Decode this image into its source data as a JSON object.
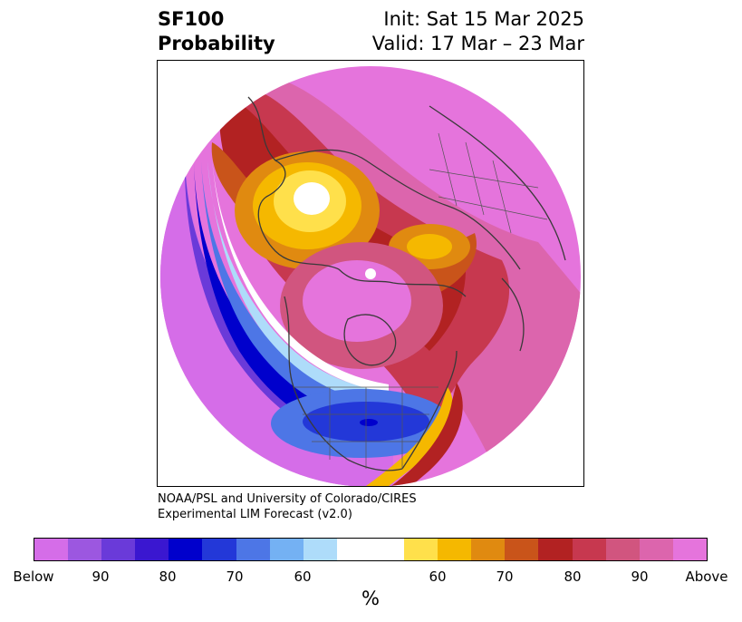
{
  "title": {
    "left_line1": "SF100",
    "left_line2": "Probability",
    "right_line1": "Init: Sat 15 Mar 2025",
    "right_line2": "Valid: 17 Mar – 23 Mar"
  },
  "credit": {
    "line1": "NOAA/PSL and University of Colorado/CIRES",
    "line2": "Experimental LIM Forecast (v2.0)"
  },
  "colorbar": {
    "unit": "%",
    "tick_labels": [
      "Below",
      "90",
      "80",
      "70",
      "60",
      "60",
      "70",
      "80",
      "90",
      "Above"
    ],
    "colors": [
      "#d56de8",
      "#9c57e0",
      "#6a3ad9",
      "#3a17d0",
      "#0000cc",
      "#2338d8",
      "#4d76e6",
      "#74b1f3",
      "#aedcfa",
      "#ffffff",
      "#ffe04b",
      "#f5b800",
      "#e08a10",
      "#c9541a",
      "#b22222",
      "#c7384f",
      "#d1557f",
      "#dc65ad",
      "#e574dc"
    ]
  },
  "colors": {
    "land_outline": "#3a3a3a",
    "pink": "#e574dc",
    "magenta": "#d1557f",
    "red": "#b22222",
    "orange": "#c9541a",
    "blue": "#0000cc"
  }
}
